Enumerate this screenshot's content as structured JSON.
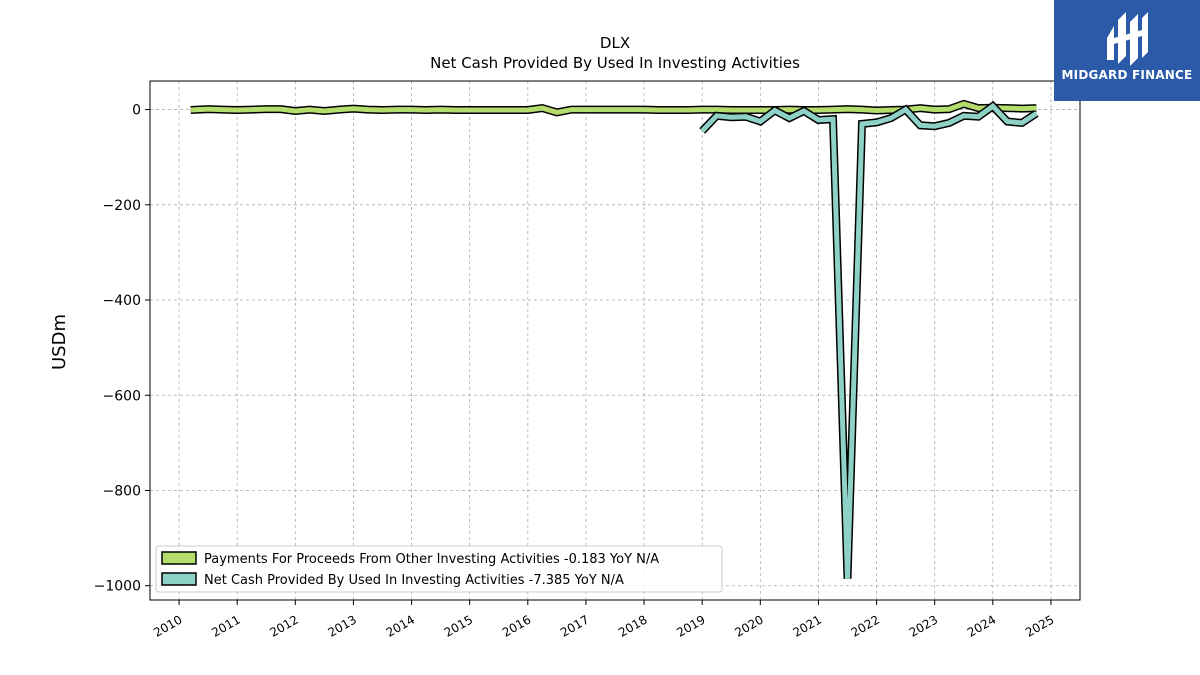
{
  "chart_data": {
    "type": "line",
    "title": "DLX",
    "subtitle": "Net Cash Provided By Used In Investing Activities",
    "ylabel": "USDm",
    "xlabel": "",
    "xlim": [
      2009.5,
      2025.5
    ],
    "ylim": [
      -1030,
      60
    ],
    "x_ticks": [
      "2010",
      "2011",
      "2012",
      "2013",
      "2014",
      "2015",
      "2016",
      "2017",
      "2018",
      "2019",
      "2020",
      "2021",
      "2022",
      "2023",
      "2024",
      "2025"
    ],
    "y_ticks": [
      0,
      -200,
      -400,
      -600,
      -800,
      -1000
    ],
    "y_tick_labels": [
      "0",
      "−200",
      "−400",
      "−600",
      "−800",
      "−1000"
    ],
    "grid": true,
    "legend_position": "lower-left",
    "series": [
      {
        "name": "Payments For Proceeds From Other Investing Activities",
        "legend_label": "Payments For Proceeds From Other Investing Activities  -0.183 YoY N/A",
        "color": "#b5dd6e",
        "x": [
          2010.2,
          2010.5,
          2010.75,
          2011.0,
          2011.25,
          2011.5,
          2011.75,
          2012.0,
          2012.25,
          2012.5,
          2012.75,
          2013.0,
          2013.25,
          2013.5,
          2013.75,
          2014.0,
          2014.25,
          2014.5,
          2014.75,
          2015.0,
          2015.25,
          2015.5,
          2015.75,
          2016.0,
          2016.25,
          2016.5,
          2016.75,
          2017.0,
          2017.25,
          2017.5,
          2017.75,
          2018.0,
          2018.25,
          2018.5,
          2018.75,
          2019.0,
          2019.25,
          2019.5,
          2019.75,
          2020.0,
          2020.25,
          2020.5,
          2020.75,
          2021.0,
          2021.25,
          2021.5,
          2021.75,
          2022.0,
          2022.25,
          2022.5,
          2022.75,
          2023.0,
          2023.25,
          2023.5,
          2023.75,
          2024.0,
          2024.25,
          2024.5,
          2024.75
        ],
        "values": [
          -1,
          1,
          0,
          -1,
          0,
          1,
          1,
          -3,
          0,
          -3,
          0,
          2,
          0,
          -1,
          0,
          0,
          -1,
          0,
          -1,
          -1,
          -1,
          -1,
          -1,
          -1,
          3,
          -6,
          0,
          0,
          0,
          0,
          0,
          0,
          -1,
          -1,
          -1,
          0,
          0,
          -1,
          -1,
          -1,
          -1,
          0,
          -1,
          -1,
          0,
          1,
          0,
          -2,
          -1,
          0,
          3,
          0,
          1,
          12,
          3,
          4,
          3,
          2,
          3
        ]
      },
      {
        "name": "Net Cash Provided By Used In Investing Activities",
        "legend_label": "Net Cash Provided By Used In Investing Activities  -7.385 YoY N/A",
        "color": "#8ed1c6",
        "x": [
          2019.0,
          2019.25,
          2019.5,
          2019.75,
          2020.0,
          2020.25,
          2020.5,
          2020.75,
          2021.0,
          2021.25,
          2021.5,
          2021.75,
          2022.0,
          2022.25,
          2022.5,
          2022.75,
          2023.0,
          2023.25,
          2023.5,
          2023.75,
          2024.0,
          2024.25,
          2024.5,
          2024.75
        ],
        "values": [
          -45,
          -13,
          -16,
          -15,
          -25,
          -2,
          -18,
          -3,
          -22,
          -20,
          -985,
          -30,
          -27,
          -18,
          0,
          -33,
          -35,
          -28,
          -13,
          -15,
          7,
          -25,
          -28,
          -8
        ]
      }
    ]
  },
  "logo": {
    "text": "MIDGARD FINANCE",
    "background": "#2a5aa8",
    "icon": "midgard-logo-icon"
  }
}
